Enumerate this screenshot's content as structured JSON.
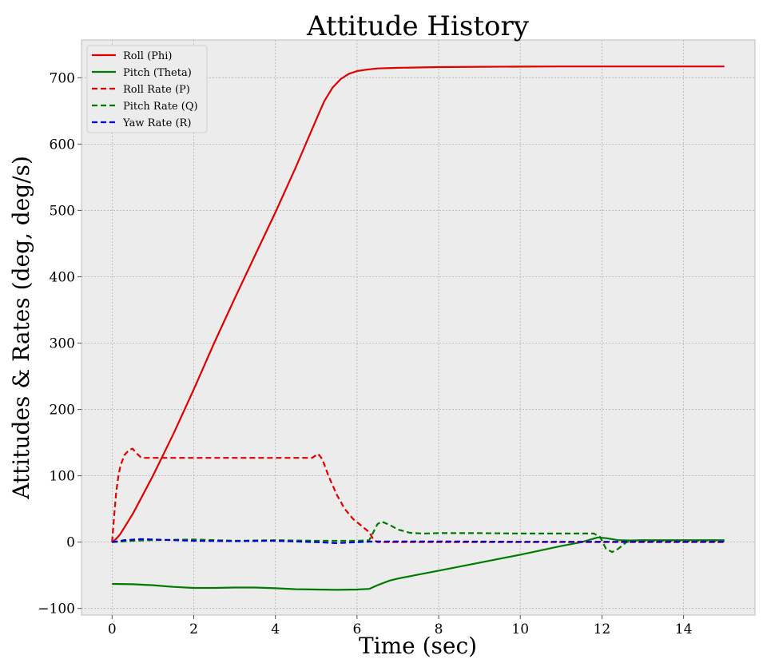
{
  "chart_data": {
    "type": "line",
    "title": "Attitude History",
    "xlabel": "Time (sec)",
    "ylabel": "Attitudes & Rates (deg, deg/s)",
    "xlim": [
      -0.75,
      15.75
    ],
    "ylim": [
      -110,
      757
    ],
    "xticks": [
      0,
      2,
      4,
      6,
      8,
      10,
      12,
      14
    ],
    "yticks": [
      -100,
      0,
      100,
      200,
      300,
      400,
      500,
      600,
      700
    ],
    "xtick_labels": [
      "0",
      "2",
      "4",
      "6",
      "8",
      "10",
      "12",
      "14"
    ],
    "ytick_labels": [
      "−100",
      "0",
      "100",
      "200",
      "300",
      "400",
      "500",
      "600",
      "700"
    ],
    "grid": true,
    "legend_position": "top-left",
    "series": [
      {
        "name": "Roll (Phi)",
        "color": "#e00000",
        "dash": "solid",
        "x": [
          0,
          0.1,
          0.2,
          0.3,
          0.5,
          0.7,
          1.0,
          1.5,
          2.0,
          2.5,
          3.0,
          3.5,
          4.0,
          4.5,
          5.0,
          5.2,
          5.4,
          5.6,
          5.8,
          6.0,
          6.2,
          6.5,
          7.0,
          8.0,
          9.0,
          10.0,
          11.0,
          12.0,
          13.0,
          14.0,
          15.0
        ],
        "y": [
          0,
          5,
          12,
          22,
          42,
          65,
          100,
          163,
          230,
          300,
          367,
          432,
          497,
          565,
          637,
          665,
          685,
          698,
          706,
          710,
          712,
          714,
          715,
          716,
          716.5,
          716.8,
          717,
          717,
          717,
          717,
          717
        ]
      },
      {
        "name": "Pitch (Theta)",
        "color": "#007a00",
        "dash": "solid",
        "x": [
          0,
          0.5,
          1.0,
          1.5,
          2.0,
          2.5,
          3.0,
          3.5,
          4.0,
          4.5,
          5.0,
          5.5,
          6.0,
          6.3,
          6.5,
          6.8,
          7.0,
          7.5,
          8.0,
          9.0,
          10.0,
          11.0,
          11.5,
          11.9,
          12.1,
          12.4,
          12.7,
          13.0,
          14.0,
          15.0
        ],
        "y": [
          -63,
          -63.5,
          -65,
          -67.5,
          -69,
          -69,
          -68.5,
          -68.5,
          -69.5,
          -71,
          -71.5,
          -72,
          -71.5,
          -70.5,
          -65,
          -58,
          -55,
          -49,
          -43,
          -31,
          -19,
          -6,
          0,
          7,
          6,
          3,
          2.5,
          3,
          3,
          3
        ]
      },
      {
        "name": "Roll Rate (P)",
        "color": "#e00000",
        "dash": "dashed",
        "x": [
          0,
          0.05,
          0.1,
          0.15,
          0.2,
          0.3,
          0.4,
          0.5,
          0.6,
          0.7,
          0.8,
          1.0,
          2.0,
          3.0,
          4.0,
          4.5,
          4.9,
          5.05,
          5.15,
          5.3,
          5.5,
          5.7,
          5.9,
          6.1,
          6.3,
          6.4,
          6.5,
          7.0,
          8.0,
          10.0,
          12.0,
          14.0,
          15.0
        ],
        "y": [
          0,
          40,
          75,
          98,
          114,
          131,
          138,
          141,
          134,
          128,
          127,
          127,
          127,
          127,
          127,
          127,
          127,
          133,
          125,
          100,
          72,
          50,
          35,
          25,
          15,
          4,
          0,
          0,
          0,
          0,
          0,
          0,
          0
        ]
      },
      {
        "name": "Pitch Rate (Q)",
        "color": "#007a00",
        "dash": "dashed",
        "x": [
          0,
          0.5,
          1.0,
          2.0,
          3.0,
          4.0,
          5.0,
          5.5,
          6.0,
          6.3,
          6.4,
          6.5,
          6.6,
          6.8,
          7.0,
          7.3,
          7.6,
          8.0,
          9.0,
          10.0,
          11.0,
          11.8,
          11.95,
          12.1,
          12.25,
          12.4,
          12.6,
          12.8,
          13.5,
          14.0,
          15.0
        ],
        "y": [
          0,
          2,
          3,
          4,
          2,
          3,
          2,
          2,
          2,
          3,
          15,
          27,
          31,
          26,
          19,
          14,
          13,
          13.5,
          13.5,
          13,
          13,
          13,
          8,
          -10,
          -15,
          -10,
          0,
          2,
          2,
          2,
          2
        ]
      },
      {
        "name": "Yaw Rate (R)",
        "color": "#0000dd",
        "dash": "dashed",
        "x": [
          0,
          0.3,
          0.7,
          1.5,
          2.0,
          3.0,
          4.0,
          5.0,
          5.5,
          6.0,
          6.5,
          7.0,
          8.0,
          10.0,
          12.0,
          13.0,
          15.0
        ],
        "y": [
          0,
          3,
          4.5,
          3,
          2,
          1.5,
          2,
          0,
          -1.5,
          0,
          1,
          1,
          1,
          0.5,
          0.5,
          0.5,
          0.5
        ]
      }
    ]
  }
}
